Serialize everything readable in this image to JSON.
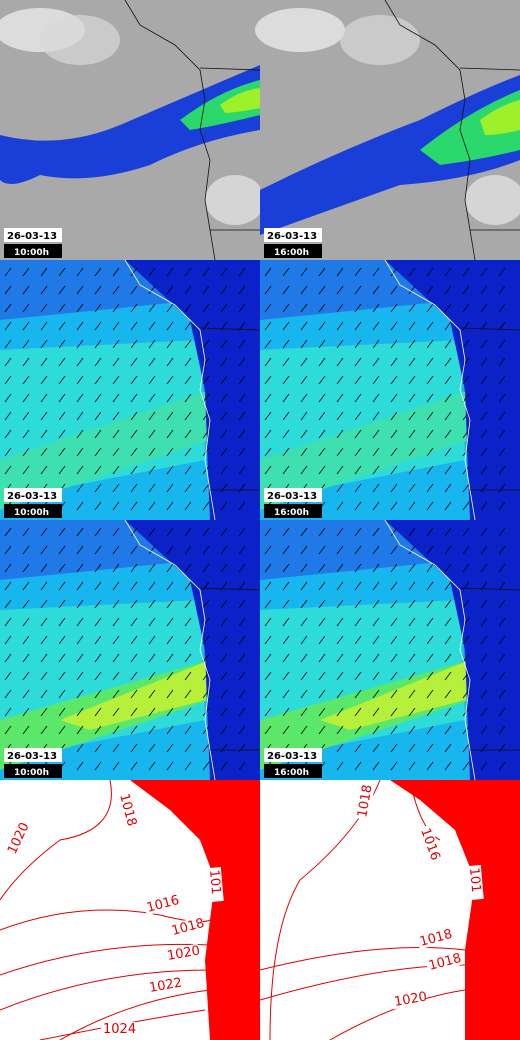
{
  "panels": [
    {
      "date": "26-03-13",
      "time": "10:00h"
    },
    {
      "date": "26-03-13",
      "time": "16:00h"
    },
    {
      "date": "26-03-13",
      "time": "10:00h"
    },
    {
      "date": "26-03-13",
      "time": "16:00h"
    },
    {
      "date": "26-03-13",
      "time": "10:00h"
    },
    {
      "date": "26-03-13",
      "time": "16:00h"
    }
  ],
  "isobar_maps": [
    {
      "labels": [
        "1018",
        "1020",
        "101",
        "1016",
        "1018",
        "1020",
        "1022",
        "1024"
      ]
    },
    {
      "labels": [
        "1018",
        "1016",
        "101",
        "1018",
        "1018",
        "1020"
      ]
    }
  ]
}
